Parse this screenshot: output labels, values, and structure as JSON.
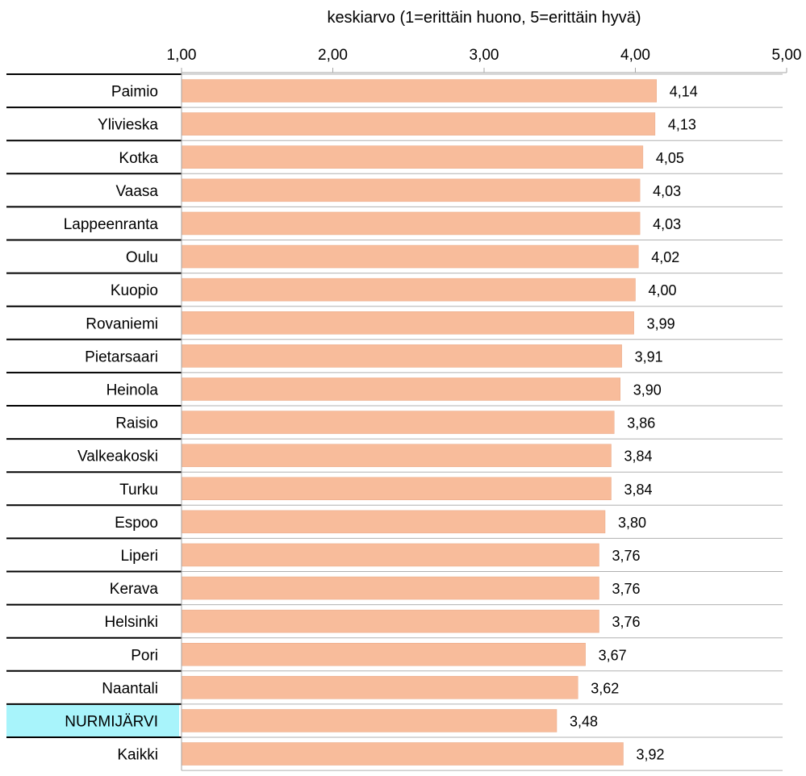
{
  "chart_data": {
    "type": "bar",
    "orientation": "horizontal",
    "title": "",
    "xlabel": "keskiarvo (1=erittäin huono, 5=erittäin hyvä)",
    "ylabel": "",
    "xlim": [
      1,
      5
    ],
    "x_ticks": [
      "1,00",
      "2,00",
      "3,00",
      "4,00",
      "5,00"
    ],
    "x_tick_values": [
      1,
      2,
      3,
      4,
      5
    ],
    "axis_position": "top",
    "grid": false,
    "bar_color": "#f8bc9b",
    "highlight_color": "#a8f4fb",
    "highlight_category": "NURMIJÄRVI",
    "categories": [
      "Paimio",
      "Ylivieska",
      "Kotka",
      "Vaasa",
      "Lappeenranta",
      "Oulu",
      "Kuopio",
      "Rovaniemi",
      "Pietarsaari",
      "Heinola",
      "Raisio",
      "Valkeakoski",
      "Turku",
      "Espoo",
      "Liperi",
      "Kerava",
      "Helsinki",
      "Pori",
      "Naantali",
      "NURMIJÄRVI",
      "Kaikki"
    ],
    "values": [
      4.14,
      4.13,
      4.05,
      4.03,
      4.03,
      4.02,
      4.0,
      3.99,
      3.91,
      3.9,
      3.86,
      3.84,
      3.84,
      3.8,
      3.76,
      3.76,
      3.76,
      3.67,
      3.62,
      3.48,
      3.92
    ],
    "value_labels": [
      "4,14",
      "4,13",
      "4,05",
      "4,03",
      "4,03",
      "4,02",
      "4,00",
      "3,99",
      "3,91",
      "3,90",
      "3,86",
      "3,84",
      "3,84",
      "3,80",
      "3,76",
      "3,76",
      "3,76",
      "3,67",
      "3,62",
      "3,48",
      "3,92"
    ]
  }
}
